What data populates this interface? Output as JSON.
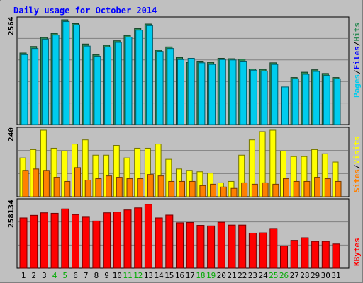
{
  "chart_data": [
    {
      "type": "bar",
      "title": "Daily usage for October 2014",
      "categories": [
        "1",
        "2",
        "3",
        "4",
        "5",
        "6",
        "7",
        "8",
        "9",
        "10",
        "11",
        "12",
        "13",
        "14",
        "15",
        "16",
        "17",
        "18",
        "19",
        "20",
        "21",
        "22",
        "23",
        "24",
        "25",
        "26",
        "27",
        "28",
        "29",
        "30",
        "31"
      ],
      "weekend_days": [
        "4",
        "5",
        "11",
        "12",
        "18",
        "19",
        "25",
        "26"
      ],
      "ymax_label": "2564",
      "ylim": [
        0,
        2564
      ],
      "series": [
        {
          "name": "Hits",
          "color": "#2e8b57",
          "values": [
            1750,
            1910,
            2130,
            2230,
            2564,
            2470,
            1970,
            1710,
            1940,
            2050,
            2180,
            2350,
            2460,
            1820,
            1900,
            1640,
            1520,
            1550,
            1520,
            1620,
            1610,
            1600,
            1360,
            1350,
            1510,
            0,
            1150,
            1280,
            1340,
            1250,
            1150
          ]
        },
        {
          "name": "Files",
          "color": "#0000ff",
          "values": [
            0,
            0,
            0,
            0,
            0,
            0,
            0,
            0,
            0,
            0,
            0,
            0,
            0,
            0,
            0,
            0,
            0,
            0,
            0,
            0,
            0,
            0,
            0,
            0,
            0,
            0,
            0,
            0,
            0,
            0,
            0
          ]
        },
        {
          "name": "Pages",
          "color": "#00ccee",
          "values": [
            1710,
            1860,
            2090,
            2190,
            2520,
            2440,
            1920,
            1670,
            1900,
            2010,
            2140,
            2310,
            2420,
            1790,
            1860,
            1590,
            1620,
            1510,
            1470,
            1590,
            1580,
            1550,
            1330,
            1310,
            1470,
            920,
            1120,
            1230,
            1300,
            1200,
            1120
          ]
        }
      ]
    },
    {
      "type": "bar",
      "ymax_label": "240",
      "ylim": [
        0,
        240
      ],
      "series": [
        {
          "name": "Visits",
          "color": "#ffff00",
          "values": [
            140,
            170,
            240,
            175,
            165,
            190,
            205,
            150,
            150,
            185,
            140,
            175,
            175,
            190,
            135,
            100,
            95,
            90,
            85,
            50,
            55,
            150,
            205,
            235,
            240,
            165,
            145,
            145,
            170,
            155,
            125
          ]
        },
        {
          "name": "Sites",
          "color": "#ff8000",
          "values": [
            95,
            100,
            95,
            70,
            55,
            105,
            60,
            65,
            75,
            70,
            65,
            65,
            80,
            75,
            55,
            55,
            55,
            40,
            45,
            35,
            30,
            50,
            45,
            50,
            45,
            65,
            55,
            55,
            70,
            65,
            55
          ]
        }
      ]
    },
    {
      "type": "bar",
      "ymax_label": "258134",
      "ylim": [
        0,
        258134
      ],
      "series": [
        {
          "name": "KBytes",
          "color": "#ff0000",
          "values": [
            195000,
            205000,
            215000,
            213000,
            230000,
            208000,
            198000,
            183000,
            215000,
            218000,
            226000,
            234000,
            248000,
            195000,
            206000,
            176000,
            177000,
            166000,
            164000,
            178000,
            167000,
            167000,
            136000,
            137000,
            154000,
            86000,
            108000,
            118000,
            104000,
            104000,
            94000
          ]
        }
      ]
    }
  ],
  "legend": {
    "panel1": [
      {
        "text": "Pages",
        "color": "#00ccee"
      },
      {
        "text": "/",
        "color": "#000000"
      },
      {
        "text": "Files",
        "color": "#0000ff"
      },
      {
        "text": "/",
        "color": "#000000"
      },
      {
        "text": "Hits",
        "color": "#2e8b57"
      }
    ],
    "panel2": [
      {
        "text": "Sites",
        "color": "#ff8000"
      },
      {
        "text": "/",
        "color": "#000000"
      },
      {
        "text": "Visits",
        "color": "#ffff00"
      }
    ],
    "panel3": [
      {
        "text": "KBytes",
        "color": "#ff0000"
      }
    ]
  },
  "colors": {
    "background": "#c0c0c0",
    "title": "#0000ff",
    "weekday_label": "#000000",
    "weekend_label": "#00aa00",
    "grid": "#808080"
  }
}
